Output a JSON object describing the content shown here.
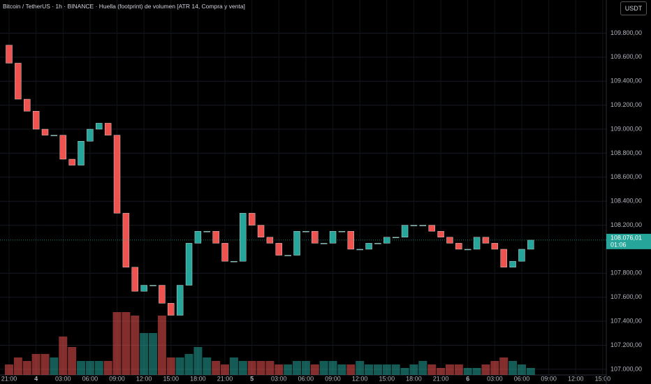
{
  "header": {
    "title": "Bitcoin / TetherUS · 1h · BINANCE · Huella (footprint) de volumen [ATR 14, Compra y venta]",
    "currency": "USDT"
  },
  "chart_data": {
    "type": "candlestick",
    "up_color": "#26a69a",
    "down_color": "#ef5350",
    "x": [
      0,
      1,
      2,
      3,
      4,
      5,
      6,
      7,
      8,
      9,
      10,
      11,
      12,
      13,
      14,
      15,
      16,
      17,
      18,
      19,
      20,
      21,
      22,
      23,
      24,
      25,
      26,
      27,
      28,
      29,
      30,
      31,
      32,
      33,
      34,
      35,
      36,
      37,
      38,
      39,
      40,
      41,
      42,
      43,
      44,
      45,
      46,
      47,
      48,
      49,
      50,
      51,
      52,
      53,
      54,
      55,
      56,
      57,
      58
    ],
    "open": [
      109700,
      109550,
      109250,
      109150,
      109000,
      108950,
      108950,
      108750,
      108700,
      108900,
      109000,
      109050,
      108950,
      108300,
      107850,
      107650,
      107700,
      107700,
      107550,
      107450,
      107700,
      108050,
      108150,
      108150,
      108050,
      107900,
      107900,
      108300,
      108200,
      108100,
      108050,
      107950,
      107950,
      108150,
      108150,
      108050,
      108050,
      108150,
      108150,
      108000,
      108000,
      108050,
      108050,
      108100,
      108100,
      108200,
      108200,
      108200,
      108150,
      108100,
      108050,
      108000,
      108000,
      108100,
      108050,
      108000,
      107850,
      107900,
      108000
    ],
    "close": [
      109550,
      109250,
      109150,
      109000,
      108950,
      108950,
      108750,
      108700,
      108900,
      109000,
      109050,
      108950,
      108300,
      107850,
      107650,
      107700,
      107700,
      107550,
      107450,
      107700,
      108050,
      108150,
      108150,
      108050,
      107900,
      107900,
      108300,
      108200,
      108100,
      108050,
      107950,
      107950,
      108150,
      108150,
      108050,
      108050,
      108150,
      108150,
      108000,
      108000,
      108050,
      108050,
      108100,
      108100,
      108200,
      108200,
      108200,
      108150,
      108100,
      108050,
      108000,
      108000,
      108100,
      108050,
      108000,
      107850,
      107900,
      108000,
      108076.01
    ],
    "volume": [
      15,
      25,
      20,
      30,
      30,
      25,
      55,
      40,
      20,
      20,
      20,
      20,
      90,
      90,
      85,
      60,
      60,
      85,
      25,
      25,
      30,
      40,
      25,
      20,
      15,
      25,
      20,
      20,
      20,
      20,
      15,
      15,
      20,
      20,
      15,
      20,
      20,
      15,
      15,
      20,
      15,
      15,
      15,
      15,
      10,
      15,
      20,
      15,
      10,
      15,
      15,
      10,
      10,
      15,
      20,
      25,
      20,
      15,
      10
    ],
    "volume_lim": [
      0,
      95
    ],
    "last_price_label": "108.076,01",
    "countdown": "01:06",
    "xlim": [
      -1.01,
      66.4
    ],
    "xticks": [
      {
        "value": 0,
        "label": "21:00"
      },
      {
        "value": 3,
        "label": "4"
      },
      {
        "value": 6,
        "label": "03:00"
      },
      {
        "value": 9,
        "label": "06:00"
      },
      {
        "value": 12,
        "label": "09:00"
      },
      {
        "value": 15,
        "label": "12:00"
      },
      {
        "value": 18,
        "label": "15:00"
      },
      {
        "value": 21,
        "label": "18:00"
      },
      {
        "value": 24,
        "label": "21:00"
      },
      {
        "value": 27,
        "label": "5"
      },
      {
        "value": 30,
        "label": "03:00"
      },
      {
        "value": 33,
        "label": "06:00"
      },
      {
        "value": 36,
        "label": "09:00"
      },
      {
        "value": 39,
        "label": "12:00"
      },
      {
        "value": 42,
        "label": "15:00"
      },
      {
        "value": 45,
        "label": "18:00"
      },
      {
        "value": 48,
        "label": "21:00"
      },
      {
        "value": 51,
        "label": "6"
      },
      {
        "value": 54,
        "label": "03:00"
      },
      {
        "value": 57,
        "label": "06:00"
      },
      {
        "value": 60,
        "label": "09:00"
      },
      {
        "value": 63,
        "label": "12:00"
      },
      {
        "value": 66,
        "label": "15:00"
      }
    ],
    "ylim": [
      106953,
      110076
    ],
    "yticks": [
      {
        "value": 107000,
        "label": "107.000,00"
      },
      {
        "value": 107200,
        "label": "107.200,00"
      },
      {
        "value": 107400,
        "label": "107.400,00"
      },
      {
        "value": 107600,
        "label": "107.600,00"
      },
      {
        "value": 107800,
        "label": "107.800,00"
      },
      {
        "value": 108200,
        "label": "108.200,00"
      },
      {
        "value": 108400,
        "label": "108.400,00"
      },
      {
        "value": 108600,
        "label": "108.600,00"
      },
      {
        "value": 108800,
        "label": "108.800,00"
      },
      {
        "value": 109000,
        "label": "109.000,00"
      },
      {
        "value": 109200,
        "label": "109.200,00"
      },
      {
        "value": 109400,
        "label": "109.400,00"
      },
      {
        "value": 109600,
        "label": "109.600,00"
      },
      {
        "value": 109800,
        "label": "109.800,00"
      }
    ],
    "grid": true
  }
}
